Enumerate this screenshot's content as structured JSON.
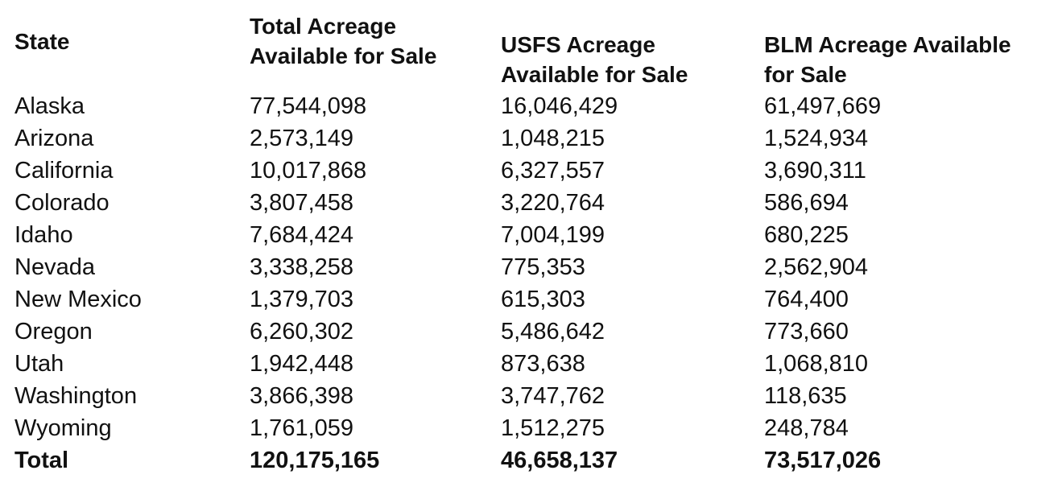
{
  "table": {
    "headers": {
      "state": "State",
      "total": [
        "Total Acreage",
        "Available for Sale"
      ],
      "usfs": [
        "USFS Acreage",
        "Available for Sale"
      ],
      "blm": [
        "BLM Acreage Available",
        "for Sale"
      ]
    },
    "rows": [
      {
        "state": "Alaska",
        "total": "77,544,098",
        "usfs": "16,046,429",
        "blm": "61,497,669"
      },
      {
        "state": "Arizona",
        "total": "2,573,149",
        "usfs": "1,048,215",
        "blm": "1,524,934"
      },
      {
        "state": "California",
        "total": "10,017,868",
        "usfs": "6,327,557",
        "blm": "3,690,311"
      },
      {
        "state": "Colorado",
        "total": "3,807,458",
        "usfs": "3,220,764",
        "blm": "586,694"
      },
      {
        "state": "Idaho",
        "total": "7,684,424",
        "usfs": "7,004,199",
        "blm": "680,225"
      },
      {
        "state": "Nevada",
        "total": "3,338,258",
        "usfs": "775,353",
        "blm": "2,562,904"
      },
      {
        "state": "New Mexico",
        "total": "1,379,703",
        "usfs": "615,303",
        "blm": "764,400"
      },
      {
        "state": "Oregon",
        "total": "6,260,302",
        "usfs": "5,486,642",
        "blm": "773,660"
      },
      {
        "state": "Utah",
        "total": "1,942,448",
        "usfs": "873,638",
        "blm": "1,068,810"
      },
      {
        "state": "Washington",
        "total": "3,866,398",
        "usfs": "3,747,762",
        "blm": "118,635"
      },
      {
        "state": "Wyoming",
        "total": "1,761,059",
        "usfs": "1,512,275",
        "blm": "248,784"
      }
    ],
    "total_row": {
      "state": "Total",
      "total": "120,175,165",
      "usfs": "46,658,137",
      "blm": "73,517,026"
    }
  }
}
